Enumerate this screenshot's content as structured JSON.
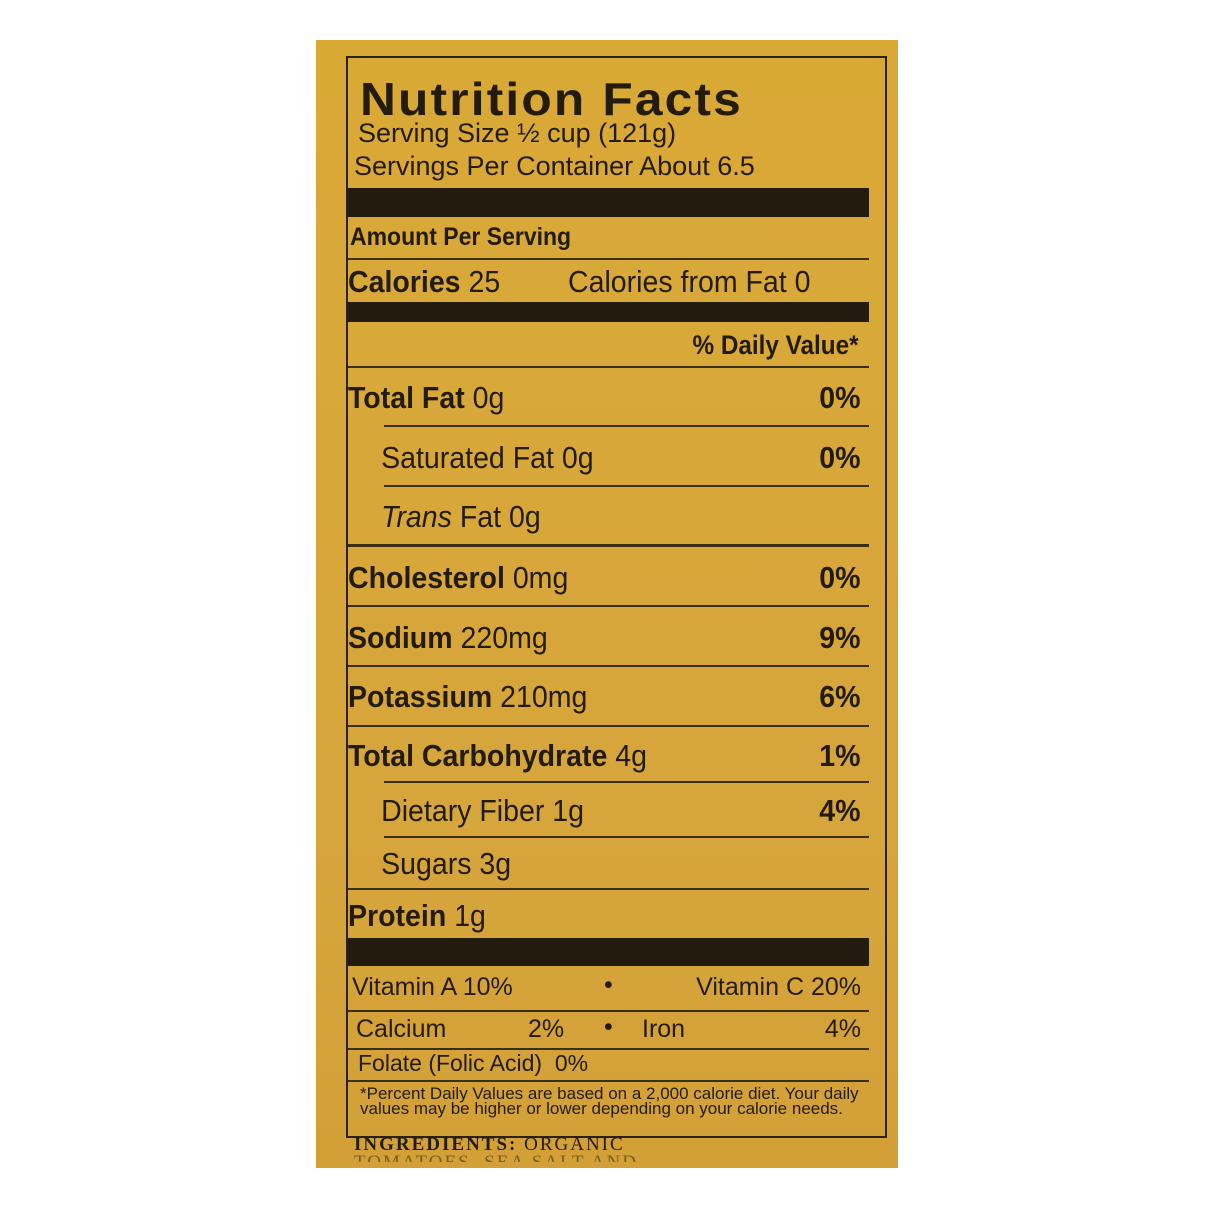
{
  "label": {
    "title": "Nutrition Facts",
    "serving_size": "Serving Size ½ cup (121g)",
    "servings_per_container": "Servings Per Container About 6.5",
    "amount_per_serving": "Amount Per Serving",
    "calories_label": "Calories",
    "calories_value": "25",
    "calories_from_fat": "Calories from Fat 0",
    "daily_value_header": "% Daily Value*",
    "nutrients": [
      {
        "name": "Total Fat",
        "amount": "0g",
        "dv": "0%"
      },
      {
        "name": "Saturated Fat",
        "amount": "0g",
        "dv": "0%"
      },
      {
        "name": "Trans",
        "name2": "Fat",
        "amount": "0g",
        "dv": ""
      },
      {
        "name": "Cholesterol",
        "amount": "0mg",
        "dv": "0%"
      },
      {
        "name": "Sodium",
        "amount": "220mg",
        "dv": "9%"
      },
      {
        "name": "Potassium",
        "amount": "210mg",
        "dv": "6%"
      },
      {
        "name": "Total Carbohydrate",
        "amount": "4g",
        "dv": "1%"
      },
      {
        "name": "Dietary Fiber",
        "amount": "1g",
        "dv": "4%"
      },
      {
        "name": "Sugars",
        "amount": "3g",
        "dv": ""
      },
      {
        "name": "Protein",
        "amount": "1g",
        "dv": ""
      }
    ],
    "vitamins": {
      "vitamin_a": "Vitamin A 10%",
      "vitamin_c": "Vitamin C 20%",
      "calcium": "Calcium",
      "calcium_dv": "2%",
      "iron": "Iron",
      "iron_dv": "4%",
      "folate": "Folate (Folic Acid)  0%",
      "bullet": "•"
    },
    "footnote": "*Percent Daily Values are based on a 2,000 calorie diet. Your daily values may be higher or lower depending on your calorie needs.",
    "ingredients_label": "INGREDIENTS:",
    "ingredients_text": "ORGANIC",
    "ingredients_partial": "TOMATOES, SEA SALT AND"
  },
  "colors": {
    "background": "#d8a73a",
    "ink": "#231c0e"
  }
}
